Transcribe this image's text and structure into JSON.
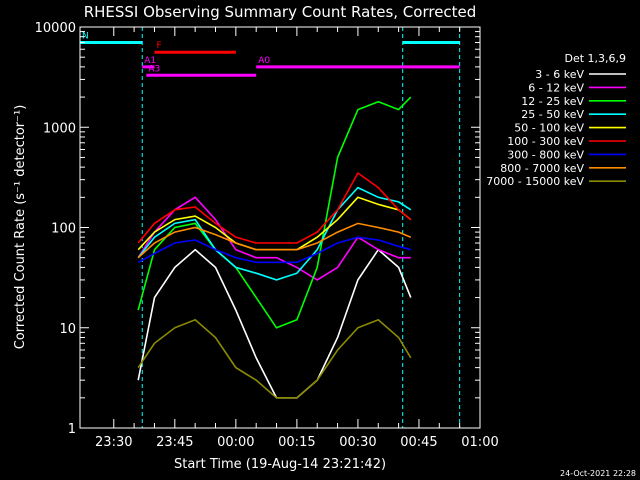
{
  "chart_data": {
    "type": "line",
    "title": "RHESSI Observing Summary Count Rates, Corrected",
    "xlabel": "Start Time (19-Aug-14 23:21:42)",
    "ylabel": "Corrected Count Rate (s⁻¹ detector⁻¹)",
    "y_scale": "log",
    "ylim": [
      1,
      10000
    ],
    "xlim": [
      "23:21:42",
      "01:00:00"
    ],
    "x_ticks": [
      "23:30",
      "23:45",
      "00:00",
      "00:15",
      "00:30",
      "00:45",
      "01:00"
    ],
    "y_ticks": [
      "1",
      "10",
      "100",
      "1000",
      "10000"
    ],
    "legend_title": "Det 1,3,6,9",
    "legend_position": "right",
    "series": [
      {
        "name": "3 - 6 keV",
        "color": "#ffffff",
        "x": [
          "23:36",
          "23:40",
          "23:45",
          "23:50",
          "23:55",
          "00:00",
          "00:05",
          "00:10",
          "00:15",
          "00:20",
          "00:25",
          "00:30",
          "00:35",
          "00:40",
          "00:43"
        ],
        "values": [
          3,
          20,
          40,
          60,
          40,
          15,
          5,
          2,
          2,
          3,
          8,
          30,
          60,
          40,
          20
        ]
      },
      {
        "name": "6 - 12 keV",
        "color": "#ff00ff",
        "x": [
          "23:36",
          "23:40",
          "23:45",
          "23:50",
          "23:55",
          "00:00",
          "00:05",
          "00:10",
          "00:15",
          "00:20",
          "00:25",
          "00:30",
          "00:35",
          "00:40",
          "00:43"
        ],
        "values": [
          50,
          90,
          150,
          200,
          120,
          60,
          50,
          50,
          40,
          30,
          40,
          80,
          60,
          50,
          50
        ]
      },
      {
        "name": "12 - 25 keV",
        "color": "#00ff00",
        "x": [
          "23:36",
          "23:40",
          "23:45",
          "23:50",
          "23:55",
          "00:00",
          "00:05",
          "00:10",
          "00:15",
          "00:20",
          "00:25",
          "00:30",
          "00:35",
          "00:40",
          "00:43"
        ],
        "values": [
          15,
          60,
          100,
          110,
          60,
          40,
          20,
          10,
          12,
          40,
          500,
          1500,
          1800,
          1500,
          2000
        ]
      },
      {
        "name": "25 - 50 keV",
        "color": "#00ffff",
        "x": [
          "23:36",
          "23:40",
          "23:45",
          "23:50",
          "23:55",
          "00:00",
          "00:05",
          "00:10",
          "00:15",
          "00:20",
          "00:25",
          "00:30",
          "00:35",
          "00:40",
          "00:43"
        ],
        "values": [
          50,
          80,
          110,
          120,
          60,
          40,
          35,
          30,
          35,
          60,
          150,
          250,
          200,
          180,
          150
        ]
      },
      {
        "name": "50 - 100 keV",
        "color": "#ffff00",
        "x": [
          "23:36",
          "23:40",
          "23:45",
          "23:50",
          "23:55",
          "00:00",
          "00:05",
          "00:10",
          "00:15",
          "00:20",
          "00:25",
          "00:30",
          "00:35",
          "00:40",
          "00:43"
        ],
        "values": [
          60,
          90,
          120,
          130,
          100,
          70,
          60,
          60,
          60,
          80,
          120,
          200,
          170,
          150,
          120
        ]
      },
      {
        "name": "100 - 300 keV",
        "color": "#ff0000",
        "x": [
          "23:36",
          "23:40",
          "23:45",
          "23:50",
          "23:55",
          "00:00",
          "00:05",
          "00:10",
          "00:15",
          "00:20",
          "00:25",
          "00:30",
          "00:35",
          "00:40",
          "00:43"
        ],
        "values": [
          70,
          110,
          150,
          160,
          110,
          80,
          70,
          70,
          70,
          90,
          150,
          350,
          250,
          150,
          120
        ]
      },
      {
        "name": "300 - 800 keV",
        "color": "#0000ff",
        "x": [
          "23:36",
          "23:40",
          "23:45",
          "23:50",
          "23:55",
          "00:00",
          "00:05",
          "00:10",
          "00:15",
          "00:20",
          "00:25",
          "00:30",
          "00:35",
          "00:40",
          "00:43"
        ],
        "values": [
          45,
          55,
          70,
          75,
          60,
          50,
          45,
          45,
          45,
          55,
          70,
          80,
          75,
          65,
          60
        ]
      },
      {
        "name": "800 - 7000 keV",
        "color": "#ff8c00",
        "x": [
          "23:36",
          "23:40",
          "23:45",
          "23:50",
          "23:55",
          "00:00",
          "00:05",
          "00:10",
          "00:15",
          "00:20",
          "00:25",
          "00:30",
          "00:35",
          "00:40",
          "00:43"
        ],
        "values": [
          50,
          70,
          90,
          100,
          85,
          70,
          60,
          60,
          60,
          70,
          90,
          110,
          100,
          90,
          80
        ]
      },
      {
        "name": "7000 - 15000 keV",
        "color": "#8b8b00",
        "x": [
          "23:36",
          "23:40",
          "23:45",
          "23:50",
          "23:55",
          "00:00",
          "00:05",
          "00:10",
          "00:15",
          "00:20",
          "00:25",
          "00:30",
          "00:35",
          "00:40",
          "00:43"
        ],
        "values": [
          4,
          7,
          10,
          12,
          8,
          4,
          3,
          2,
          2,
          3,
          6,
          10,
          12,
          8,
          5
        ]
      }
    ],
    "annotations": [
      {
        "label": "N",
        "color": "#00ffff",
        "x": [
          "23:21:42",
          "23:37:00"
        ],
        "y": 7000
      },
      {
        "label": "",
        "color": "#00ffff",
        "x": [
          "00:41:00",
          "00:55:00"
        ],
        "y": 7000
      },
      {
        "label": "F",
        "color": "#ff0000",
        "x": [
          "23:40:00",
          "00:00:00"
        ],
        "y": 5600
      },
      {
        "label": "A1",
        "color": "#ff00ff",
        "x": [
          "23:37:00",
          "23:40:00"
        ],
        "y": 4000
      },
      {
        "label": "A3",
        "color": "#ff00ff",
        "x": [
          "23:38:00",
          "00:05:00"
        ],
        "y": 3300
      },
      {
        "label": "A0",
        "color": "#ff00ff",
        "x": [
          "00:05:00",
          "00:55:00"
        ],
        "y": 4000
      }
    ],
    "vertical_lines": [
      "23:21:42",
      "23:37:00",
      "00:41:00",
      "00:55:00"
    ],
    "timestamp": "24-Oct-2021 22:28"
  }
}
